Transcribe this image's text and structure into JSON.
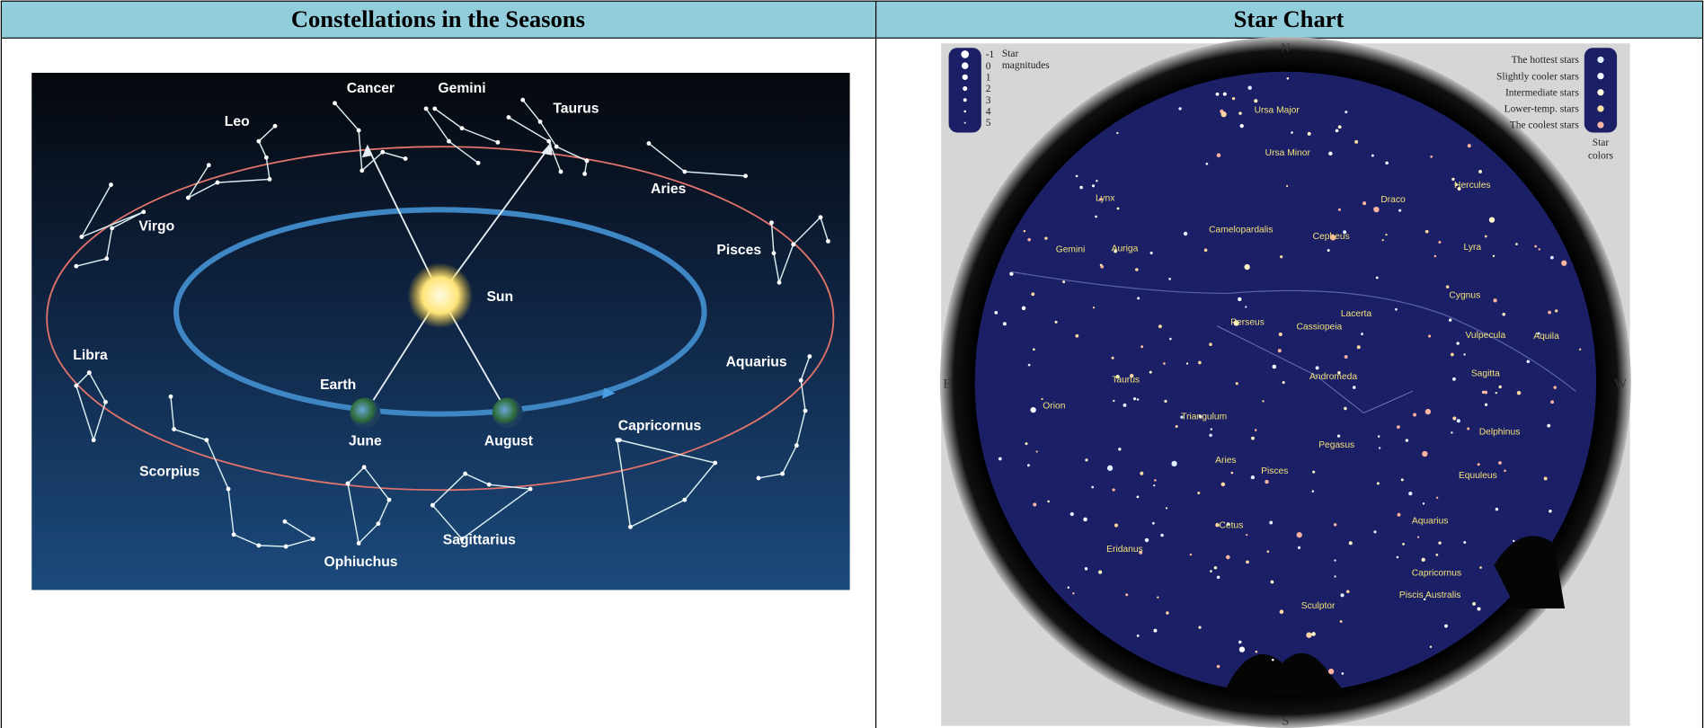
{
  "table": {
    "headers": [
      "Constellations in the Seasons",
      "Star Chart"
    ]
  },
  "seasons_diagram": {
    "constellations": [
      "Cancer",
      "Gemini",
      "Taurus",
      "Leo",
      "Aries",
      "Virgo",
      "Pisces",
      "Libra",
      "Aquarius",
      "Capricornus",
      "Scorpius",
      "Sagittarius",
      "Ophiuchus"
    ],
    "sun": "Sun",
    "earth": "Earth",
    "months": [
      "June",
      "August"
    ]
  },
  "star_chart": {
    "directions": [
      "N",
      "E",
      "W",
      "S"
    ],
    "magnitude_legend": {
      "levels": [
        -1,
        0,
        1,
        2,
        3,
        4,
        5
      ],
      "caption": [
        "Star",
        "magnitudes"
      ]
    },
    "color_legend": {
      "levels": [
        "The hottest stars",
        "Slightly cooler stars",
        "Intermediate stars",
        "Lower-temp. stars",
        "The coolest stars"
      ],
      "caption": [
        "Star",
        "colors"
      ]
    },
    "constellations": [
      "Ursa Major",
      "Ursa Minor",
      "Lynx",
      "Draco",
      "Hercules",
      "Camelopardalis",
      "Cepheus",
      "Gemini",
      "Auriga",
      "Lyra",
      "Cygnus",
      "Perseus",
      "Cassiopeia",
      "Lacerta",
      "Vulpecula",
      "Aquila",
      "Sagitta",
      "Andromeda",
      "Taurus",
      "Orion",
      "Triangulum",
      "Delphinus",
      "Pegasus",
      "Aries",
      "Pisces",
      "Equuleus",
      "Aquarius",
      "Cetus",
      "Eridanus",
      "Capricornus",
      "Piscis Australis",
      "Sculptor"
    ]
  }
}
